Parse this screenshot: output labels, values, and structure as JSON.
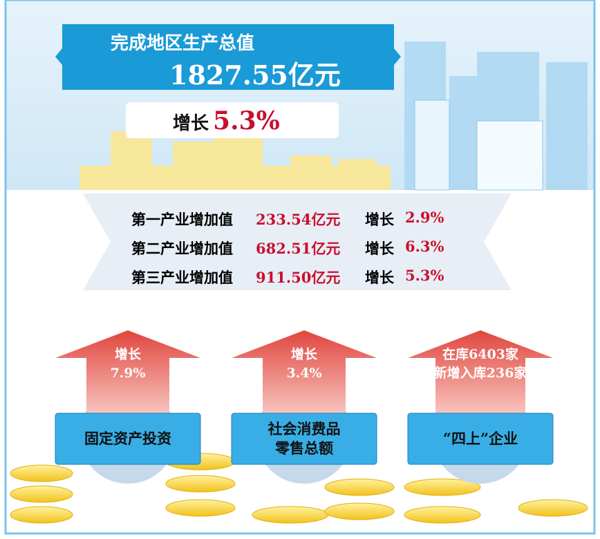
{
  "header": {
    "title": "完成地区生产总值",
    "value": "1827.55亿元",
    "growth_label": "增长",
    "growth_value": "5.3%"
  },
  "industries": [
    {
      "label": "第一产业增加值",
      "value": "233.54亿元",
      "growth_label": "增长",
      "growth": "2.9%"
    },
    {
      "label": "第二产业增加值",
      "value": "682.51亿元",
      "growth_label": "增长",
      "growth": "6.3%"
    },
    {
      "label": "第三产业增加值",
      "value": "911.50亿元",
      "growth_label": "增长",
      "growth": "5.3%"
    }
  ],
  "cards": [
    {
      "arrow_lines": [
        "增长",
        "7.9%"
      ],
      "box_lines": [
        "固定资产投资"
      ]
    },
    {
      "arrow_lines": [
        "增长",
        "3.4%"
      ],
      "box_lines": [
        "社会消费品",
        "零售总额"
      ]
    },
    {
      "arrow_lines": [
        "在库6403家",
        "新增入库236家"
      ],
      "box_lines": [
        "“四上”企业"
      ]
    }
  ]
}
